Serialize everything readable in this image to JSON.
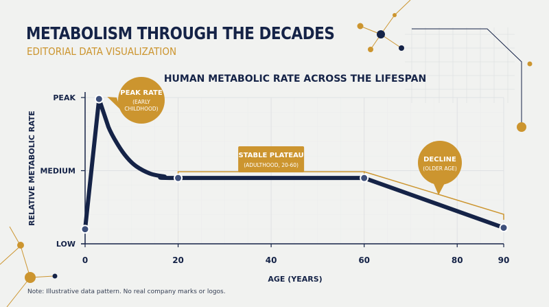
{
  "header": {
    "title": "METABOLISM THROUGH THE DECADES",
    "subtitle": "EDITORIAL DATA VISUALIZATION"
  },
  "footer": {
    "note": "Note: Illustrative data pattern. No real company marks or logos."
  },
  "colors": {
    "navy": "#152347",
    "gold": "#cc952f",
    "background": "#f1f2f0",
    "grid": "#dfe1e3"
  },
  "chart_data": {
    "type": "line",
    "title": "HUMAN METABOLIC RATE ACROSS THE LIFESPAN",
    "xlabel": "AGE (YEARS)",
    "ylabel": "RELATIVE METABOLIC RATE",
    "xlim": [
      0,
      90
    ],
    "ylim": [
      0,
      100
    ],
    "x_ticks": [
      0,
      20,
      40,
      60,
      80,
      90
    ],
    "y_ticks": [
      {
        "label": "LOW",
        "value": 0
      },
      {
        "label": "MEDIUM",
        "value": 50
      },
      {
        "label": "PEAK",
        "value": 100
      }
    ],
    "grid": true,
    "series": [
      {
        "x": [
          0,
          3,
          5,
          7,
          9,
          11,
          14,
          17,
          20,
          60,
          90
        ],
        "y": [
          10,
          99,
          80,
          68,
          59,
          53,
          48,
          46,
          45,
          45,
          11
        ]
      }
    ],
    "markers": [
      {
        "x": 0,
        "y": 10
      },
      {
        "x": 3,
        "y": 99
      },
      {
        "x": 20,
        "y": 45
      },
      {
        "x": 60,
        "y": 45
      },
      {
        "x": 90,
        "y": 11
      }
    ],
    "annotations": [
      {
        "label": "PEAK RATE",
        "sublabel": "(EARLY CHILDHOOD)",
        "x": 3
      },
      {
        "label": "STABLE PLATEAU",
        "sublabel": "(ADULTHOOD, 20-60)",
        "x_range": [
          20,
          60
        ]
      },
      {
        "label": "DECLINE",
        "sublabel": "(OLDER AGE)",
        "x_range": [
          60,
          90
        ]
      }
    ]
  }
}
